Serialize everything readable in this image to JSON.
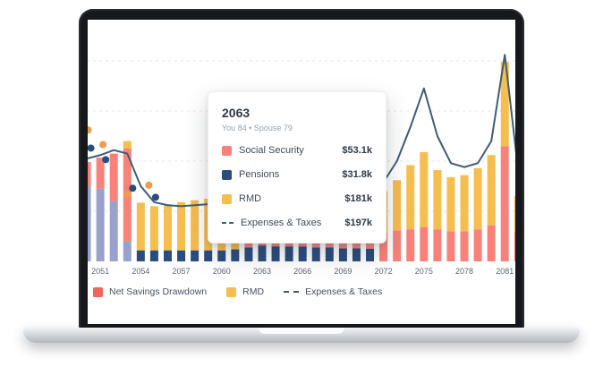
{
  "colors": {
    "social_security": "#F8827A",
    "pensions": "#2B4C7E",
    "rmd": "#F6BD4F",
    "drawdown": "#99A1CC",
    "net_savings_drawdown_legend": "#F4635C",
    "expenses_line": "#3F5D73",
    "scatter_orange": "#F09A4C",
    "scatter_navy": "#2B4C7E",
    "grid": "#E4E7EA",
    "axis_text": "#5C6773"
  },
  "tooltip": {
    "title": "2063",
    "subtitle": "You 84 • Spouse 79",
    "rows": [
      {
        "label": "Social Security",
        "value": "$53.1k",
        "swatch": "social_security",
        "type": "square"
      },
      {
        "label": "Pensions",
        "value": "$31.8k",
        "swatch": "pensions",
        "type": "square"
      },
      {
        "label": "RMD",
        "value": "$181k",
        "swatch": "rmd",
        "type": "square"
      },
      {
        "label": "Expenses & Taxes",
        "value": "$197k",
        "swatch": "expenses_line",
        "type": "dash"
      }
    ]
  },
  "legend": {
    "items": [
      {
        "label": "Net Savings Drawdown",
        "swatch": "net_savings_drawdown_legend",
        "type": "square"
      },
      {
        "label": "RMD",
        "swatch": "rmd",
        "type": "square"
      },
      {
        "label": "Expenses & Taxes",
        "swatch": "expenses_line",
        "type": "dash"
      }
    ]
  },
  "chart_data": {
    "type": "bar",
    "subtype": "stacked-bars-with-line-overlay-and-scatter",
    "unit": "$k",
    "ylim": [
      0,
      450
    ],
    "grid": true,
    "gridlines": [
      100,
      200,
      300,
      400
    ],
    "x": [
      2049,
      2050,
      2051,
      2052,
      2053,
      2054,
      2055,
      2056,
      2057,
      2058,
      2059,
      2060,
      2061,
      2062,
      2063,
      2064,
      2065,
      2066,
      2067,
      2068,
      2069,
      2070,
      2071,
      2072,
      2073,
      2074,
      2075,
      2076,
      2077,
      2078,
      2079,
      2080,
      2081,
      2082,
      2083
    ],
    "x_ticks": [
      2051,
      2054,
      2057,
      2060,
      2063,
      2066,
      2069,
      2072,
      2075,
      2078,
      2081
    ],
    "stack_series": [
      {
        "name": "Pensions",
        "color_key": "pensions",
        "values": [
          0,
          0,
          0,
          0,
          0,
          22,
          22,
          22,
          22,
          22,
          22,
          22,
          24,
          28,
          31.8,
          30,
          30,
          30,
          28,
          28,
          26,
          26,
          25,
          0,
          0,
          0,
          0,
          0,
          0,
          0,
          0,
          0,
          0,
          0,
          0
        ]
      },
      {
        "name": "Net Savings Drawdown",
        "color_key": "drawdown",
        "values": [
          150,
          150,
          145,
          120,
          40,
          0,
          0,
          0,
          0,
          0,
          0,
          0,
          0,
          0,
          0,
          0,
          0,
          0,
          0,
          0,
          0,
          0,
          0,
          0,
          0,
          0,
          0,
          0,
          0,
          0,
          0,
          0,
          0,
          0,
          0
        ]
      },
      {
        "name": "Social Security",
        "color_key": "social_security",
        "values": [
          45,
          48,
          62,
          95,
          185,
          0,
          0,
          0,
          0,
          0,
          0,
          0,
          0,
          40,
          53.1,
          50,
          50,
          48,
          46,
          45,
          44,
          44,
          45,
          58,
          62,
          64,
          68,
          64,
          60,
          60,
          64,
          72,
          230,
          60,
          50
        ]
      },
      {
        "name": "RMD",
        "color_key": "rmd",
        "values": [
          0,
          0,
          0,
          0,
          15,
          95,
          88,
          92,
          96,
          100,
          103,
          106,
          112,
          140,
          181,
          150,
          140,
          130,
          120,
          115,
          110,
          108,
          105,
          82,
          100,
          128,
          150,
          118,
          108,
          112,
          122,
          140,
          168,
          70,
          40
        ]
      }
    ],
    "line_series": {
      "name": "Expenses & Taxes",
      "color_key": "expenses_line",
      "values": [
        200,
        205,
        212,
        222,
        215,
        150,
        118,
        112,
        110,
        112,
        114,
        116,
        120,
        150,
        197,
        170,
        160,
        155,
        150,
        148,
        147,
        148,
        150,
        158,
        200,
        268,
        345,
        250,
        196,
        188,
        196,
        240,
        412,
        180,
        140
      ]
    },
    "scatter": [
      {
        "name": "scatter-orange",
        "color_key": "scatter_orange",
        "points": [
          [
            2050.1,
            262
          ],
          [
            2051.2,
            233
          ],
          [
            2053.0,
            134
          ],
          [
            2054.6,
            152
          ]
        ]
      },
      {
        "name": "scatter-navy",
        "color_key": "scatter_navy",
        "points": [
          [
            2050.3,
            226
          ],
          [
            2051.4,
            203
          ],
          [
            2053.4,
            146
          ],
          [
            2055.1,
            128
          ]
        ]
      }
    ],
    "legend_position": "bottom"
  }
}
